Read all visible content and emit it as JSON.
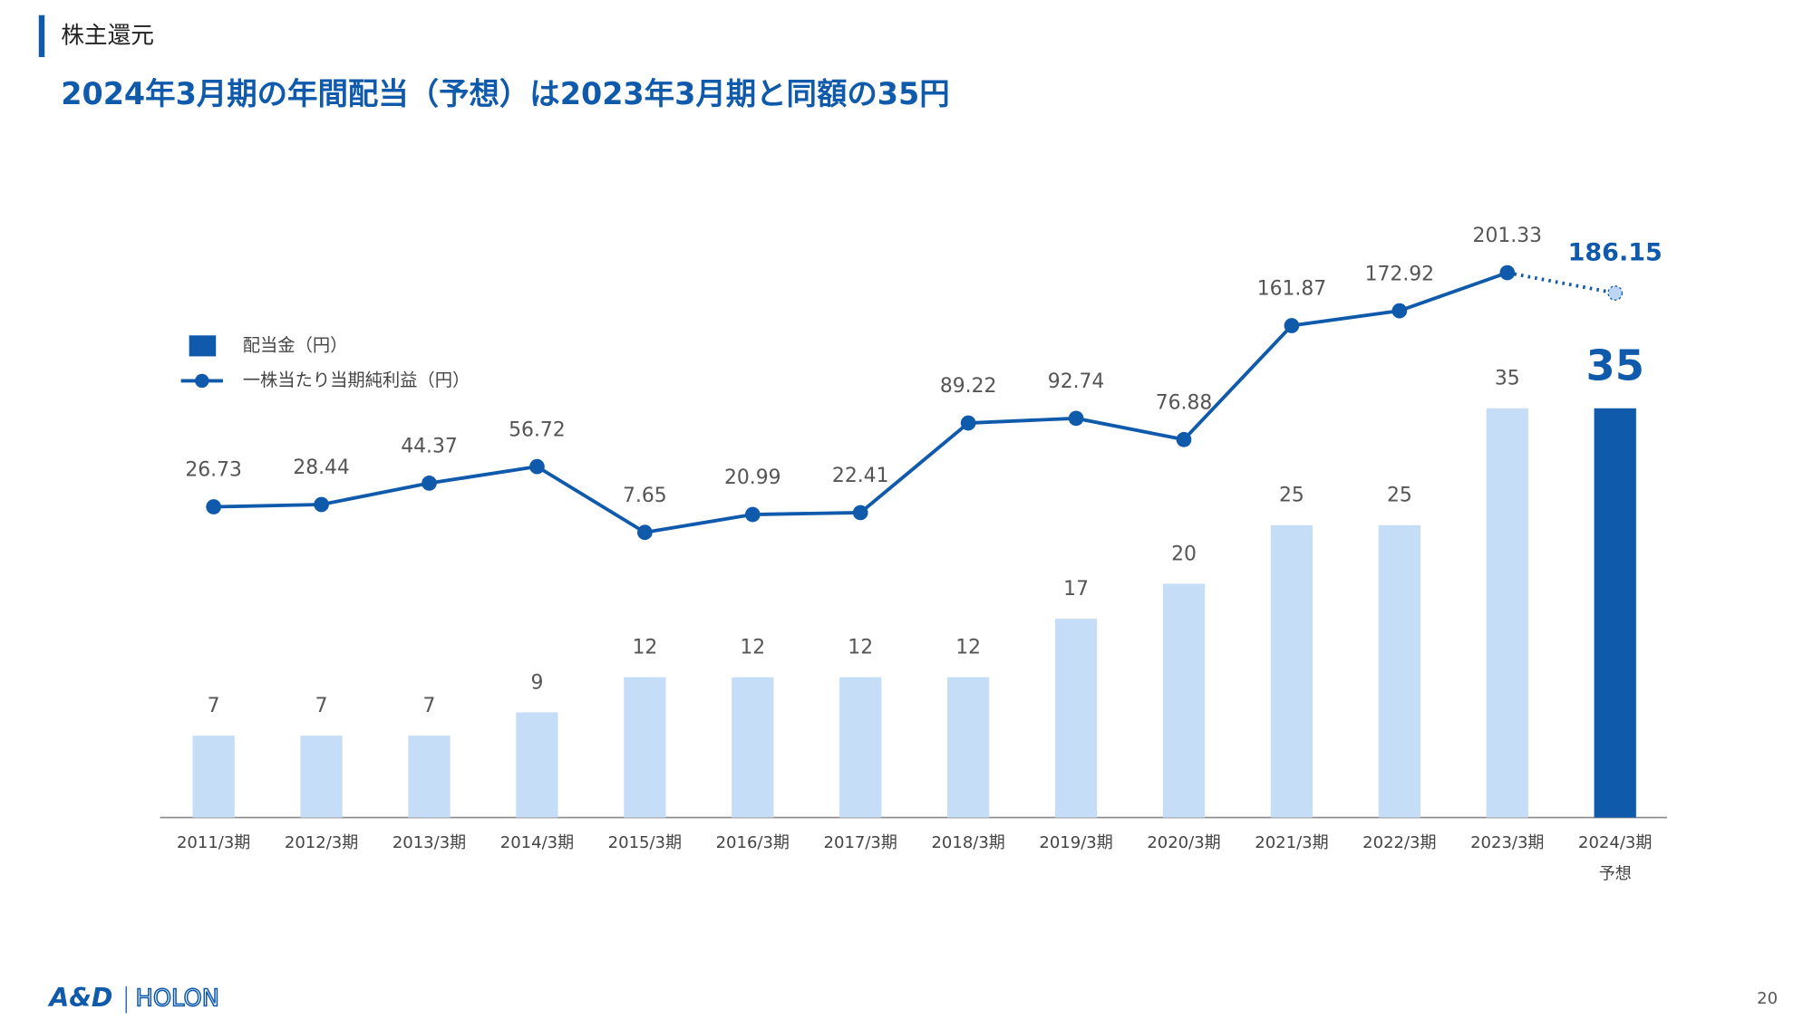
{
  "header": {
    "section": "株主還元",
    "headline": "2024年3月期の年間配当（予想）は2023年3月期と同額の35円"
  },
  "chart_data": {
    "type": "bar-line",
    "categories": [
      "2011/3期",
      "2012/3期",
      "2013/3期",
      "2014/3期",
      "2015/3期",
      "2016/3期",
      "2017/3期",
      "2018/3期",
      "2019/3期",
      "2020/3期",
      "2021/3期",
      "2022/3期",
      "2023/3期",
      "2024/3期"
    ],
    "forecast_note": "予想",
    "forecast_index": 13,
    "series": [
      {
        "name": "配当金（円）",
        "type": "bar",
        "color": "#c5ddf6",
        "forecast_color": "#0f5aab",
        "values": [
          7,
          7,
          7,
          9,
          12,
          12,
          12,
          12,
          17,
          20,
          25,
          25,
          35,
          35
        ]
      },
      {
        "name": "一株当たり当期純利益（円）",
        "type": "line",
        "axis": "y2",
        "color": "#0f5aab",
        "forecast_color": "#bcd6f3",
        "values": [
          26.73,
          28.44,
          44.37,
          56.72,
          7.65,
          20.99,
          22.41,
          89.22,
          92.74,
          76.88,
          161.87,
          172.92,
          201.33,
          186.15
        ]
      }
    ],
    "ylim": [
      0,
      50
    ],
    "y2lim": [
      -205,
      231
    ]
  },
  "footer": {
    "logo": "A&D",
    "brand": "HOLON",
    "page": "20"
  }
}
